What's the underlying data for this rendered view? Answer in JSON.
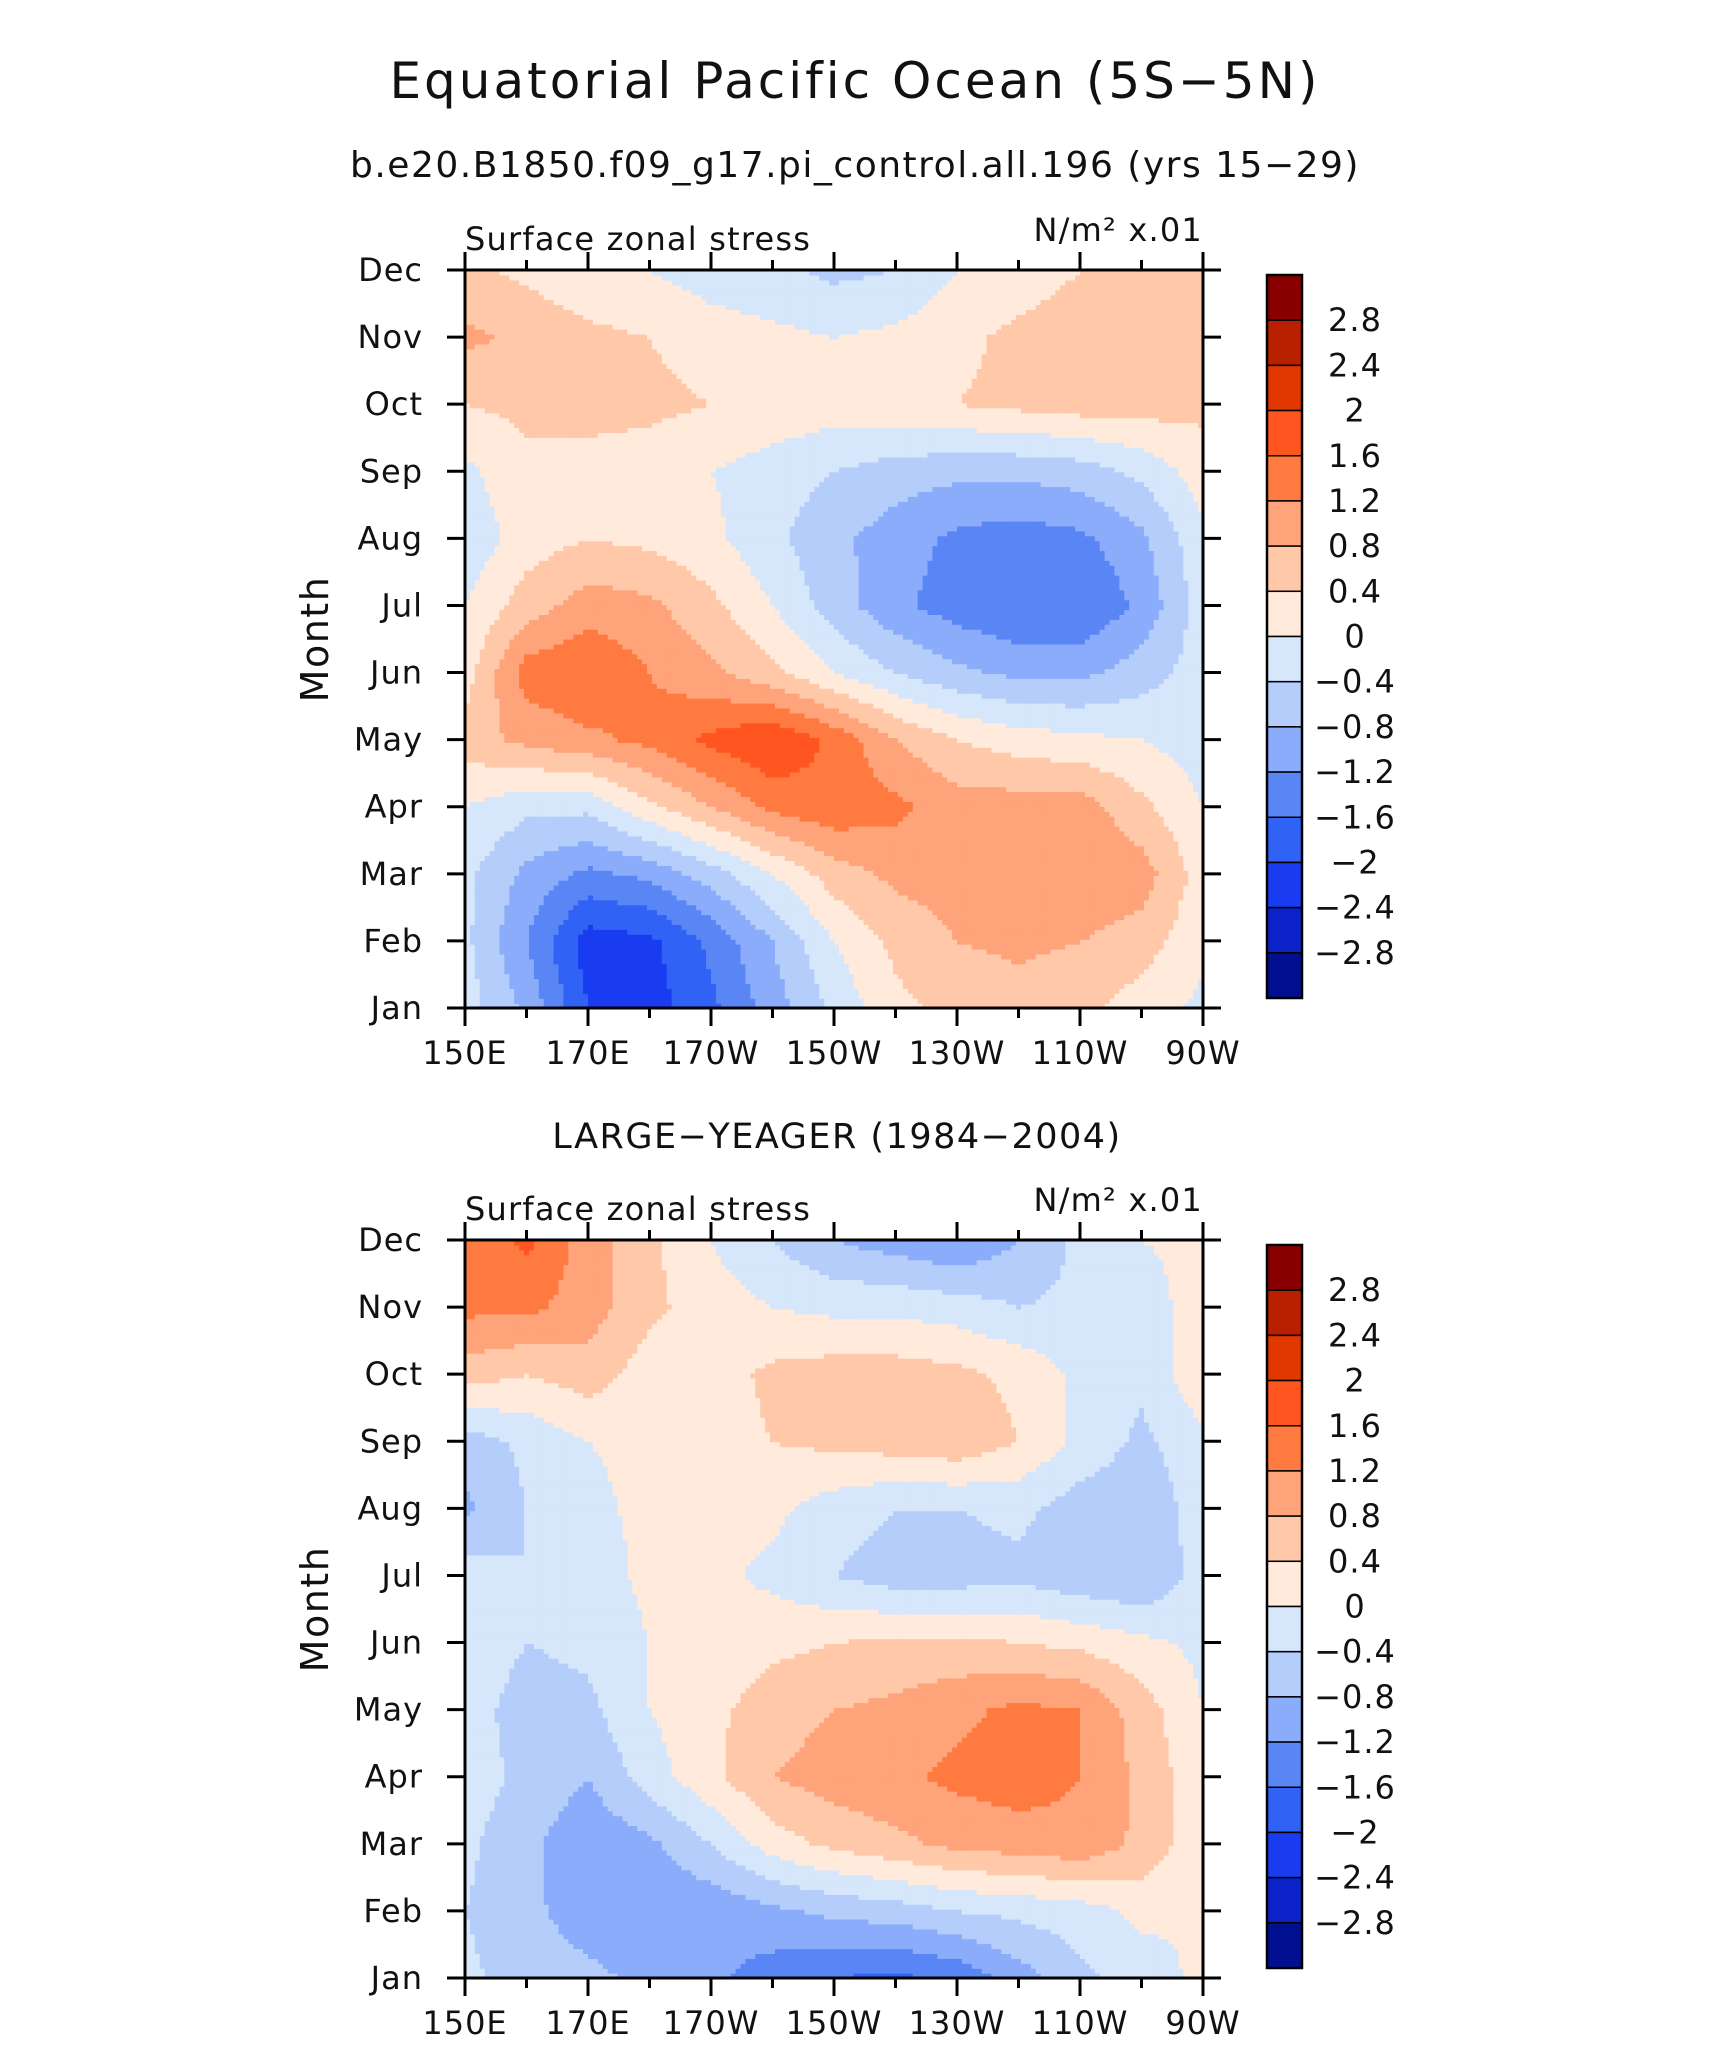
{
  "figure": {
    "title": "Equatorial Pacific Ocean (5S−5N)",
    "subtitle": "b.e20.B1850.f09_g17.pi_control.all.196 (yrs 15−29)"
  },
  "colorbar": {
    "levels": [
      -2.8,
      -2.4,
      -2,
      -1.6,
      -1.2,
      -0.8,
      -0.4,
      0,
      0.4,
      0.8,
      1.2,
      1.6,
      2,
      2.4,
      2.8
    ],
    "labels": [
      "2.8",
      "2.4",
      "2",
      "1.6",
      "1.2",
      "0.8",
      "0.4",
      "0",
      "−0.4",
      "−0.8",
      "−1.2",
      "−1.6",
      "−2",
      "−2.4",
      "−2.8"
    ],
    "colors_high_to_low": [
      "#8a0000",
      "#b82000",
      "#e03800",
      "#ff5520",
      "#ff7a40",
      "#ffa37a",
      "#ffc8a8",
      "#ffeadb",
      "#d6e6fb",
      "#b4cdfa",
      "#8aacfa",
      "#5a86f5",
      "#3062f5",
      "#1a3cf0",
      "#0a22c8",
      "#001090"
    ]
  },
  "chart_data": [
    {
      "type": "heatmap",
      "title": "",
      "left_label": "Surface zonal stress",
      "units": "N/m² x.01",
      "xlabel": "",
      "ylabel": "Month",
      "x_ticks": [
        "150E",
        "170E",
        "170W",
        "150W",
        "130W",
        "110W",
        "90W"
      ],
      "x_values": [
        150,
        170,
        190,
        210,
        230,
        250,
        270
      ],
      "xlim": [
        150,
        270
      ],
      "y_ticks": [
        "Jan",
        "Feb",
        "Mar",
        "Apr",
        "May",
        "Jun",
        "Jul",
        "Aug",
        "Sep",
        "Oct",
        "Nov",
        "Dec"
      ],
      "ylim": [
        1,
        12
      ],
      "z": [
        [
          -0.2,
          -0.9,
          -2.0,
          -2.2,
          -1.7,
          -1.0,
          -0.3,
          0.3,
          0.5,
          0.6,
          0.5,
          0.2,
          -0.1
        ],
        [
          -0.3,
          -1.2,
          -2.2,
          -2.1,
          -1.5,
          -0.8,
          0.0,
          0.5,
          0.8,
          0.9,
          0.8,
          0.6,
          0.1
        ],
        [
          -0.3,
          -0.9,
          -1.3,
          -1.1,
          -0.6,
          0.0,
          0.6,
          0.9,
          1.0,
          1.1,
          1.2,
          1.0,
          0.2
        ],
        [
          0.0,
          -0.3,
          -0.3,
          0.3,
          0.8,
          1.3,
          1.5,
          1.3,
          1.0,
          1.0,
          1.0,
          0.5,
          0.0
        ],
        [
          0.6,
          0.9,
          1.1,
          1.3,
          1.7,
          2.0,
          1.5,
          0.8,
          0.4,
          0.2,
          0.1,
          0.0,
          -0.2
        ],
        [
          0.2,
          1.4,
          1.6,
          1.2,
          0.9,
          0.5,
          0.0,
          -0.4,
          -0.7,
          -0.9,
          -0.9,
          -0.6,
          -0.2
        ],
        [
          0.0,
          0.6,
          1.0,
          0.9,
          0.5,
          0.0,
          -0.6,
          -1.1,
          -1.4,
          -1.6,
          -1.6,
          -1.1,
          -0.2
        ],
        [
          -0.3,
          0.2,
          0.4,
          0.3,
          0.1,
          -0.3,
          -0.7,
          -1.0,
          -1.3,
          -1.4,
          -1.3,
          -0.9,
          -0.1
        ],
        [
          -0.1,
          0.3,
          0.3,
          0.2,
          0.0,
          -0.2,
          -0.4,
          -0.6,
          -0.7,
          -0.7,
          -0.6,
          -0.3,
          0.2
        ],
        [
          0.4,
          0.5,
          0.5,
          0.5,
          0.4,
          0.3,
          0.2,
          0.3,
          0.4,
          0.5,
          0.6,
          0.6,
          0.5
        ],
        [
          0.9,
          0.7,
          0.5,
          0.4,
          0.2,
          0.1,
          0.0,
          0.1,
          0.3,
          0.5,
          0.6,
          0.7,
          0.6
        ],
        [
          0.5,
          0.3,
          0.1,
          0.0,
          -0.2,
          -0.3,
          -0.5,
          -0.4,
          0.0,
          0.2,
          0.4,
          0.5,
          0.4
        ]
      ]
    },
    {
      "type": "heatmap",
      "title": "LARGE−YEAGER (1984−2004)",
      "left_label": "Surface zonal stress",
      "units": "N/m² x.01",
      "xlabel": "",
      "ylabel": "Month",
      "x_ticks": [
        "150E",
        "170E",
        "170W",
        "150W",
        "130W",
        "110W",
        "90W"
      ],
      "x_values": [
        150,
        170,
        190,
        210,
        230,
        250,
        270
      ],
      "xlim": [
        150,
        270
      ],
      "y_ticks": [
        "Jan",
        "Feb",
        "Mar",
        "Apr",
        "May",
        "Jun",
        "Jul",
        "Aug",
        "Sep",
        "Oct",
        "Nov",
        "Dec"
      ],
      "ylim": [
        1,
        12
      ],
      "z": [
        [
          -0.3,
          -0.6,
          -0.7,
          -0.9,
          -1.1,
          -1.4,
          -1.6,
          -1.7,
          -1.5,
          -1.0,
          -0.5,
          -0.2,
          0.1
        ],
        [
          -0.4,
          -0.7,
          -1.0,
          -1.1,
          -1.1,
          -0.9,
          -0.7,
          -0.6,
          -0.4,
          -0.3,
          -0.2,
          0.1,
          0.0
        ],
        [
          -0.3,
          -0.7,
          -1.1,
          -0.9,
          -0.4,
          0.2,
          0.5,
          0.7,
          0.9,
          1.0,
          1.1,
          0.7,
          0.1
        ],
        [
          -0.2,
          -0.5,
          -0.8,
          -0.2,
          0.3,
          0.8,
          1.0,
          1.1,
          1.3,
          1.4,
          1.2,
          0.7,
          0.1
        ],
        [
          -0.2,
          -0.6,
          -0.5,
          0.0,
          0.3,
          0.6,
          0.8,
          0.9,
          1.1,
          1.3,
          1.2,
          0.6,
          0.0
        ],
        [
          -0.1,
          -0.4,
          -0.3,
          0.0,
          0.1,
          0.3,
          0.4,
          0.5,
          0.5,
          0.4,
          0.3,
          0.1,
          -0.1
        ],
        [
          -0.2,
          -0.4,
          -0.2,
          0.1,
          0.1,
          -0.1,
          -0.4,
          -0.6,
          -0.6,
          -0.5,
          -0.7,
          -0.8,
          -0.2
        ],
        [
          -0.9,
          -0.4,
          -0.1,
          0.1,
          0.2,
          0.1,
          -0.2,
          -0.4,
          -0.4,
          -0.3,
          -0.6,
          -0.7,
          -0.2
        ],
        [
          -0.6,
          -0.3,
          0.0,
          0.1,
          0.2,
          0.4,
          0.5,
          0.6,
          0.7,
          0.4,
          -0.1,
          -0.5,
          -0.1
        ],
        [
          0.6,
          0.4,
          0.6,
          0.2,
          0.2,
          0.5,
          0.6,
          0.6,
          0.5,
          0.3,
          -0.1,
          -0.3,
          0.3
        ],
        [
          1.3,
          1.3,
          1.0,
          0.5,
          0.2,
          0.0,
          -0.1,
          -0.1,
          -0.2,
          -0.4,
          -0.3,
          -0.2,
          0.2
        ],
        [
          1.2,
          1.7,
          1.0,
          0.5,
          0.0,
          -0.4,
          -0.8,
          -1.0,
          -1.2,
          -0.8,
          -0.3,
          0.0,
          0.1
        ]
      ]
    }
  ]
}
